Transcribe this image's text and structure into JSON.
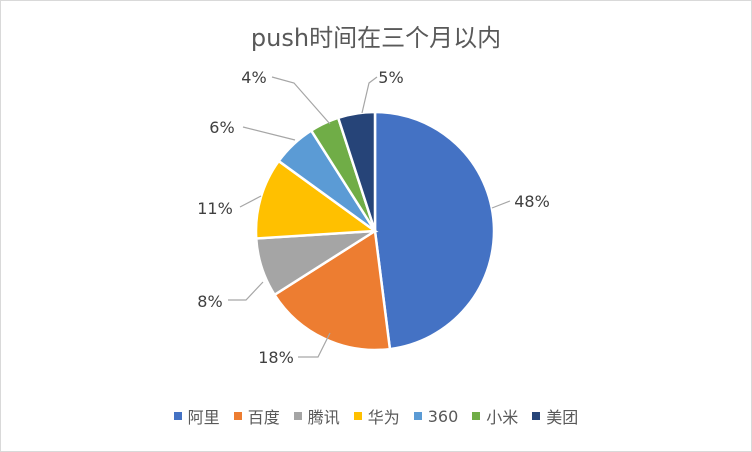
{
  "chart_data": {
    "type": "pie",
    "title": "push时间在三个月以内",
    "categories": [
      "阿里",
      "百度",
      "腾讯",
      "华为",
      "360",
      "小米",
      "美团"
    ],
    "values": [
      48,
      18,
      8,
      11,
      6,
      4,
      5
    ],
    "labels": [
      "48%",
      "18%",
      "8%",
      "11%",
      "6%",
      "4%",
      "5%"
    ],
    "colors": [
      "#4472C4",
      "#ED7D31",
      "#A5A5A5",
      "#FFC000",
      "#5B9BD5",
      "#70AD47",
      "#264478"
    ],
    "legend_position": "bottom"
  }
}
